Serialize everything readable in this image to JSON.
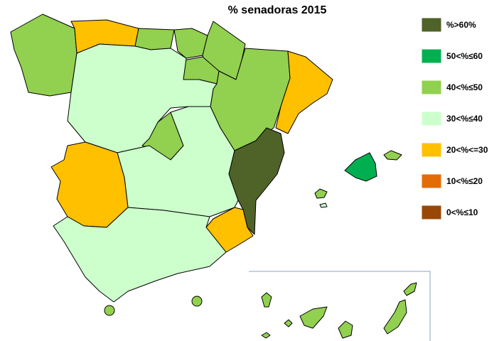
{
  "title": "% senadoras 2015",
  "legend": [
    {
      "label": "%>60%",
      "color": "#4f6228"
    },
    {
      "label": "50<%≤60",
      "color": "#00b050"
    },
    {
      "label": "40<%≤50",
      "color": "#92d050"
    },
    {
      "label": "30<%≤40",
      "color": "#ccffcc"
    },
    {
      "label": "20<%<=30",
      "color": "#ffc000"
    },
    {
      "label": "10<%≤20",
      "color": "#e36c09"
    },
    {
      "label": "0<%≤10",
      "color": "#984806"
    }
  ]
}
